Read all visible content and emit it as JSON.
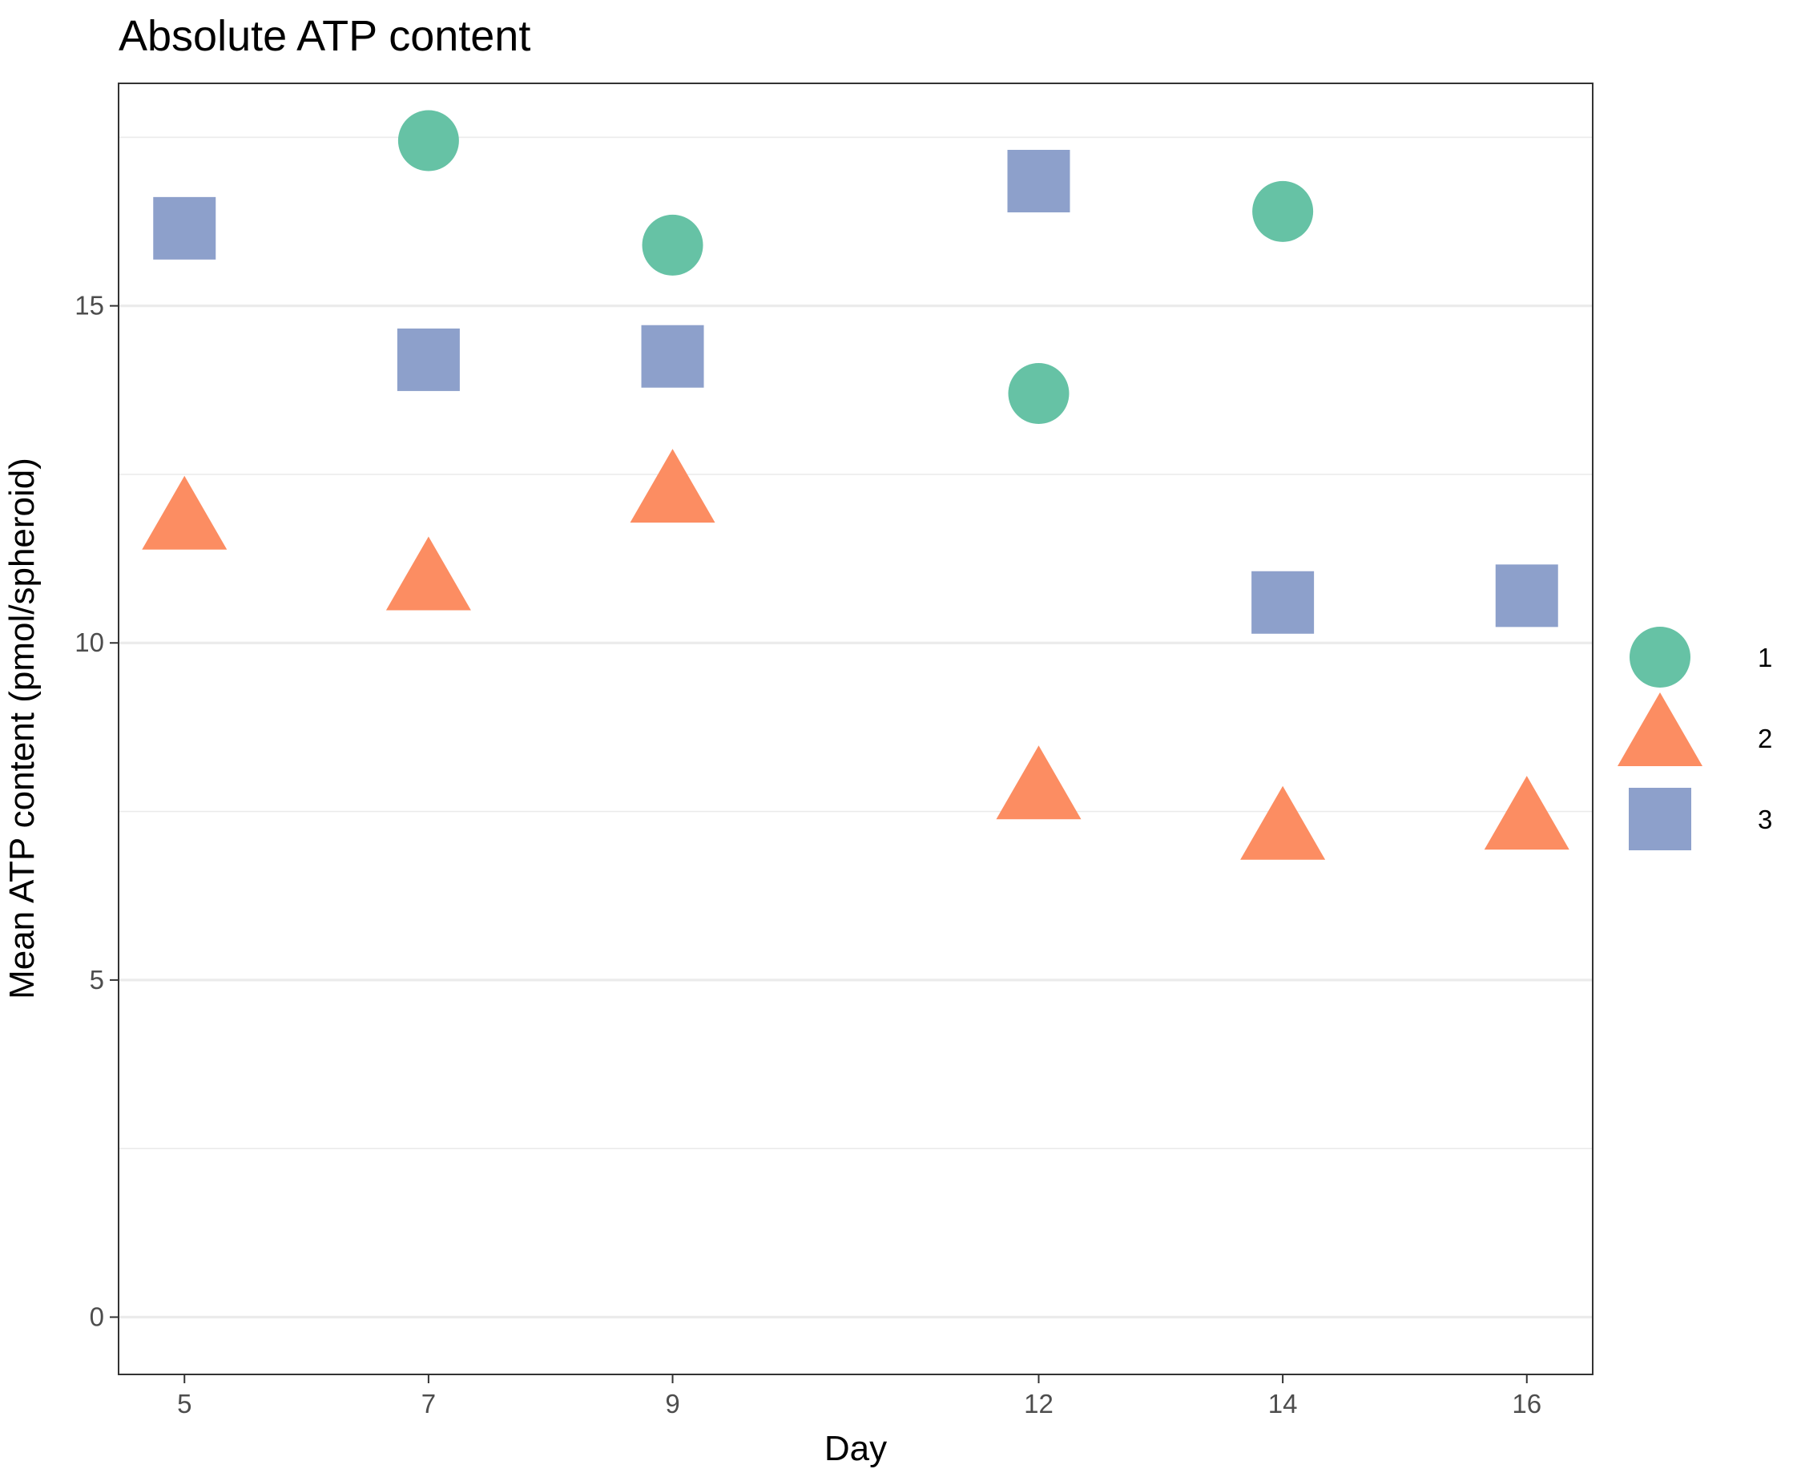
{
  "chart_data": {
    "type": "scatter",
    "title": "Absolute ATP content",
    "xlabel": "Day",
    "ylabel": "Mean ATP content (pmol/spheroid)",
    "x_ticks": [
      5,
      7,
      9,
      12,
      14,
      16
    ],
    "y_ticks": [
      0,
      5,
      10,
      15
    ],
    "xlim": [
      4.46,
      16.54
    ],
    "ylim": [
      -0.85,
      18.3
    ],
    "grid": true,
    "legend_position": "right",
    "series": [
      {
        "name": "1",
        "shape": "circle",
        "color": "#66c2a5",
        "points": [
          {
            "x": 7,
            "y": 17.45
          },
          {
            "x": 9,
            "y": 15.9
          },
          {
            "x": 12,
            "y": 13.7
          },
          {
            "x": 14,
            "y": 16.4
          }
        ]
      },
      {
        "name": "2",
        "shape": "triangle",
        "color": "#fc8d62",
        "points": [
          {
            "x": 5,
            "y": 11.8
          },
          {
            "x": 7,
            "y": 10.9
          },
          {
            "x": 9,
            "y": 12.2
          },
          {
            "x": 12,
            "y": 7.8
          },
          {
            "x": 14,
            "y": 7.2
          },
          {
            "x": 16,
            "y": 7.35
          }
        ]
      },
      {
        "name": "3",
        "shape": "square",
        "color": "#8da0cb",
        "points": [
          {
            "x": 5,
            "y": 16.15
          },
          {
            "x": 7,
            "y": 14.2
          },
          {
            "x": 9,
            "y": 14.25
          },
          {
            "x": 12,
            "y": 16.85
          },
          {
            "x": 14,
            "y": 10.6
          },
          {
            "x": 16,
            "y": 10.7
          }
        ]
      }
    ]
  }
}
